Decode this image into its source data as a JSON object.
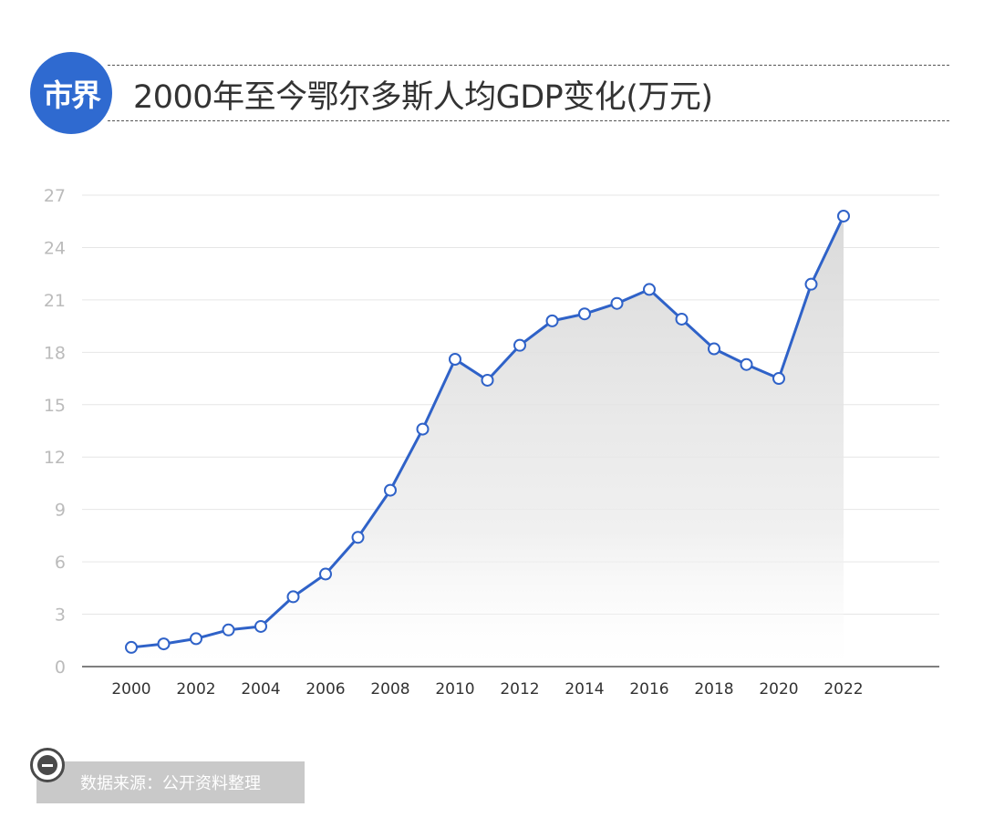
{
  "logo": {
    "text": "市界",
    "color": "#2f6ad0"
  },
  "title": "2000年至今鄂尔多斯人均GDP变化(万元)",
  "footer": {
    "source_text": "数据来源：公开资料整理",
    "box_color": "#c9c9c9",
    "icon": "minus-circle-icon"
  },
  "colors": {
    "line": "#2f62c8",
    "grid": "#e6e6e6",
    "axis": "#555555",
    "tick_text": "#bbbbbb",
    "x_tick_text": "#333333"
  },
  "chart_data": {
    "type": "area",
    "title": "2000年至今鄂尔多斯人均GDP变化(万元)",
    "xlabel": "",
    "ylabel": "",
    "x": [
      2000,
      2001,
      2002,
      2003,
      2004,
      2005,
      2006,
      2007,
      2008,
      2009,
      2010,
      2011,
      2012,
      2013,
      2014,
      2015,
      2016,
      2017,
      2018,
      2019,
      2020,
      2021,
      2022
    ],
    "values": [
      1.1,
      1.3,
      1.6,
      2.1,
      2.3,
      4.0,
      5.3,
      7.4,
      10.1,
      13.6,
      17.6,
      16.4,
      18.4,
      19.8,
      20.2,
      20.8,
      21.6,
      19.9,
      18.2,
      17.3,
      16.5,
      21.9,
      25.8
    ],
    "x_ticks": [
      "2000",
      "2002",
      "2004",
      "2006",
      "2008",
      "2010",
      "2012",
      "2014",
      "2016",
      "2018",
      "2020",
      "2022"
    ],
    "y_ticks": [
      "0",
      "3",
      "6",
      "9",
      "12",
      "15",
      "18",
      "21",
      "24",
      "27"
    ],
    "ylim": [
      0,
      27
    ],
    "grid": true,
    "legend": "none"
  }
}
